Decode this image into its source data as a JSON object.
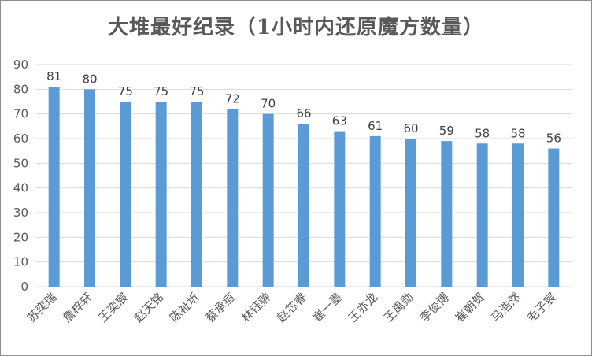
{
  "chart_data": {
    "type": "bar",
    "title": "大堆最好纪录（1小时内还原魔方数量）",
    "xlabel": "",
    "ylabel": "",
    "categories": [
      "苏奕瑞",
      "詹梓轩",
      "王奕宸",
      "赵天铭",
      "陈祉圻",
      "蔡承疸",
      "林钰翀",
      "赵芯睿",
      "崔一墨",
      "王亦龙",
      "王禹勋",
      "李俊博",
      "崔朝贺",
      "马浩然",
      "毛子宸"
    ],
    "values": [
      81,
      80,
      75,
      75,
      75,
      72,
      70,
      66,
      63,
      61,
      60,
      59,
      58,
      58,
      56
    ],
    "ylim": [
      0,
      90
    ],
    "yticks": [
      "0",
      "10",
      "20",
      "30",
      "40",
      "50",
      "60",
      "70",
      "80",
      "90"
    ],
    "grid": true,
    "bar_color": "#5b9bd5",
    "grid_color": "#d9d9d9"
  }
}
